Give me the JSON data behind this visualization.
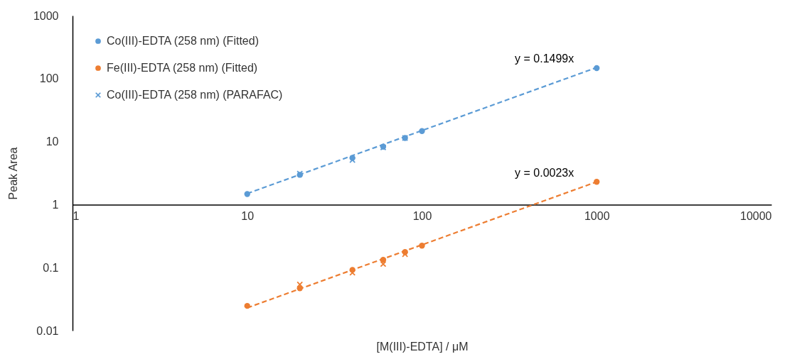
{
  "chart_data": {
    "type": "scatter",
    "xlabel": "[M(III)-EDTA] / μM",
    "ylabel": "Peak Area",
    "log": "xy",
    "xlim": [
      1,
      10000
    ],
    "xticks": [
      1,
      10,
      100,
      1000,
      10000
    ],
    "ylim": [
      0.01,
      1000
    ],
    "yticks": [
      0.01,
      0.1,
      1,
      10,
      100,
      1000
    ],
    "grid": false,
    "legend": "top left",
    "series": [
      {
        "name": "Co(III)-EDTA (258 nm) (Fitted)",
        "color": "#5b9bd5",
        "marker": "circle",
        "x": [
          10,
          20,
          40,
          60,
          80,
          100,
          1000
        ],
        "values": [
          1.47,
          2.97,
          5.5,
          8.3,
          11.4,
          14.7,
          147
        ]
      },
      {
        "name": "Fe(III)-EDTA (258 nm) (Fitted)",
        "color": "#ed7d31",
        "marker": "circle",
        "x": [
          10,
          20,
          40,
          60,
          80,
          100,
          1000
        ],
        "values": [
          0.0247,
          0.047,
          0.092,
          0.133,
          0.177,
          0.223,
          2.3
        ]
      },
      {
        "name": "Co(III)-EDTA (258 nm) (PARAFAC)",
        "color": "#5b9bd5",
        "marker": "cross",
        "x": [
          20,
          40,
          60,
          80
        ],
        "values": [
          3.1,
          5.1,
          8.1,
          11.4
        ]
      },
      {
        "color": "#ed7d31",
        "marker": "cross",
        "x": [
          20,
          40,
          60,
          80
        ],
        "values": [
          0.054,
          0.083,
          0.114,
          0.163
        ]
      },
      {
        "type": "line",
        "color": "#5b9bd5",
        "line_style": "dashed",
        "x": [
          10,
          1000
        ],
        "values": [
          1.499,
          149.9
        ]
      },
      {
        "type": "line",
        "color": "#ed7d31",
        "line_style": "dashed",
        "x": [
          10,
          1000
        ],
        "values": [
          0.023,
          2.3
        ]
      }
    ],
    "annotations": [
      "y = 0.1499x",
      "y = 0.0023x"
    ]
  }
}
